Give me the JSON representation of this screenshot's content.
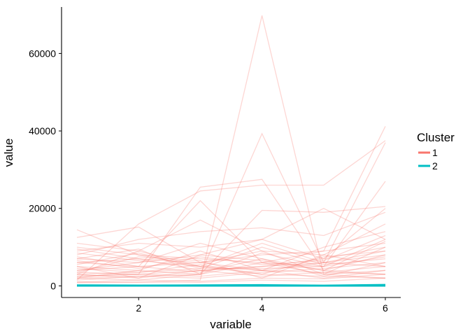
{
  "chart_data": {
    "type": "line",
    "chart_kind": "parallel-coordinates",
    "xlabel": "variable",
    "ylabel": "value",
    "x": [
      1,
      2,
      3,
      4,
      5,
      6
    ],
    "xticks": [
      2,
      4,
      6
    ],
    "xlim": [
      0.75,
      6.25
    ],
    "ylim": [
      -3000,
      72000
    ],
    "yticks": [
      0,
      20000,
      40000,
      60000
    ],
    "ytick_labels": [
      "0",
      "20000",
      "40000",
      "60000"
    ],
    "grid": false,
    "legend": {
      "title": "Cluster",
      "placement": "right",
      "entries": [
        {
          "label": "1",
          "color": "#F8766D"
        },
        {
          "label": "2",
          "color": "#00BFC4"
        }
      ]
    },
    "series": [
      {
        "cluster": "1",
        "color": "#F8766D",
        "opacity": 0.3,
        "values": [
          [
            1000,
            900,
            1500,
            69800,
            3000,
            2000
          ],
          [
            2000,
            1500,
            3000,
            39300,
            6000,
            5000
          ],
          [
            3500,
            3000,
            25500,
            27500,
            4000,
            3000
          ],
          [
            1500,
            16000,
            24500,
            26000,
            26000,
            37500
          ],
          [
            2000,
            2500,
            3000,
            19500,
            19000,
            20500
          ],
          [
            4000,
            5000,
            22000,
            6000,
            9000,
            41200
          ],
          [
            2500,
            3000,
            4000,
            5000,
            6000,
            37000
          ],
          [
            3000,
            3500,
            4500,
            4500,
            5000,
            27000
          ],
          [
            14500,
            8000,
            5000,
            3000,
            2500,
            2000
          ],
          [
            12500,
            15200,
            6000,
            4000,
            3500,
            3000
          ],
          [
            11000,
            9000,
            17000,
            9000,
            3000,
            4000
          ],
          [
            9000,
            11000,
            10000,
            12000,
            7000,
            20000
          ],
          [
            8000,
            12000,
            14000,
            15000,
            13000,
            19000
          ],
          [
            7000,
            6000,
            8000,
            12000,
            20000,
            12000
          ],
          [
            6000,
            7000,
            6000,
            9000,
            8000,
            16000
          ],
          [
            10000,
            8000,
            7000,
            6000,
            5000,
            12000
          ],
          [
            5000,
            4000,
            9000,
            4000,
            10000,
            14000
          ],
          [
            3000,
            9000,
            5000,
            11000,
            6000,
            9000
          ],
          [
            9500,
            7000,
            4000,
            5000,
            7000,
            10000
          ],
          [
            4000,
            6000,
            11000,
            7000,
            4000,
            8000
          ],
          [
            7500,
            5000,
            6000,
            8000,
            9000,
            11000
          ],
          [
            6500,
            4500,
            7500,
            5500,
            6500,
            13000
          ],
          [
            2000,
            4000,
            3000,
            6000,
            3000,
            10000
          ],
          [
            5500,
            8500,
            4500,
            10000,
            5500,
            7000
          ],
          [
            1500,
            2500,
            2000,
            3500,
            4500,
            6000
          ],
          [
            4500,
            3500,
            5500,
            3000,
            7500,
            9000
          ],
          [
            3000,
            2000,
            4000,
            2500,
            3500,
            5000
          ],
          [
            2500,
            3000,
            2500,
            4000,
            2000,
            4000
          ],
          [
            1000,
            1500,
            1200,
            2000,
            1800,
            3000
          ],
          [
            800,
            1000,
            900,
            1500,
            1200,
            2000
          ],
          [
            6000,
            5000,
            3500,
            7000,
            2500,
            6000
          ],
          [
            8500,
            6500,
            5000,
            4000,
            6000,
            8000
          ],
          [
            3500,
            7500,
            6500,
            2000,
            8000,
            5000
          ],
          [
            5000,
            2000,
            8000,
            6500,
            4000,
            11500
          ],
          [
            7000,
            9500,
            3000,
            8500,
            5000,
            7500
          ]
        ]
      },
      {
        "cluster": "2",
        "color": "#00BFC4",
        "opacity": 1,
        "values": [
          [
            0,
            0,
            0,
            0,
            0,
            0
          ],
          [
            100,
            80,
            90,
            120,
            60,
            150
          ],
          [
            200,
            150,
            180,
            250,
            120,
            300
          ]
        ]
      }
    ]
  }
}
